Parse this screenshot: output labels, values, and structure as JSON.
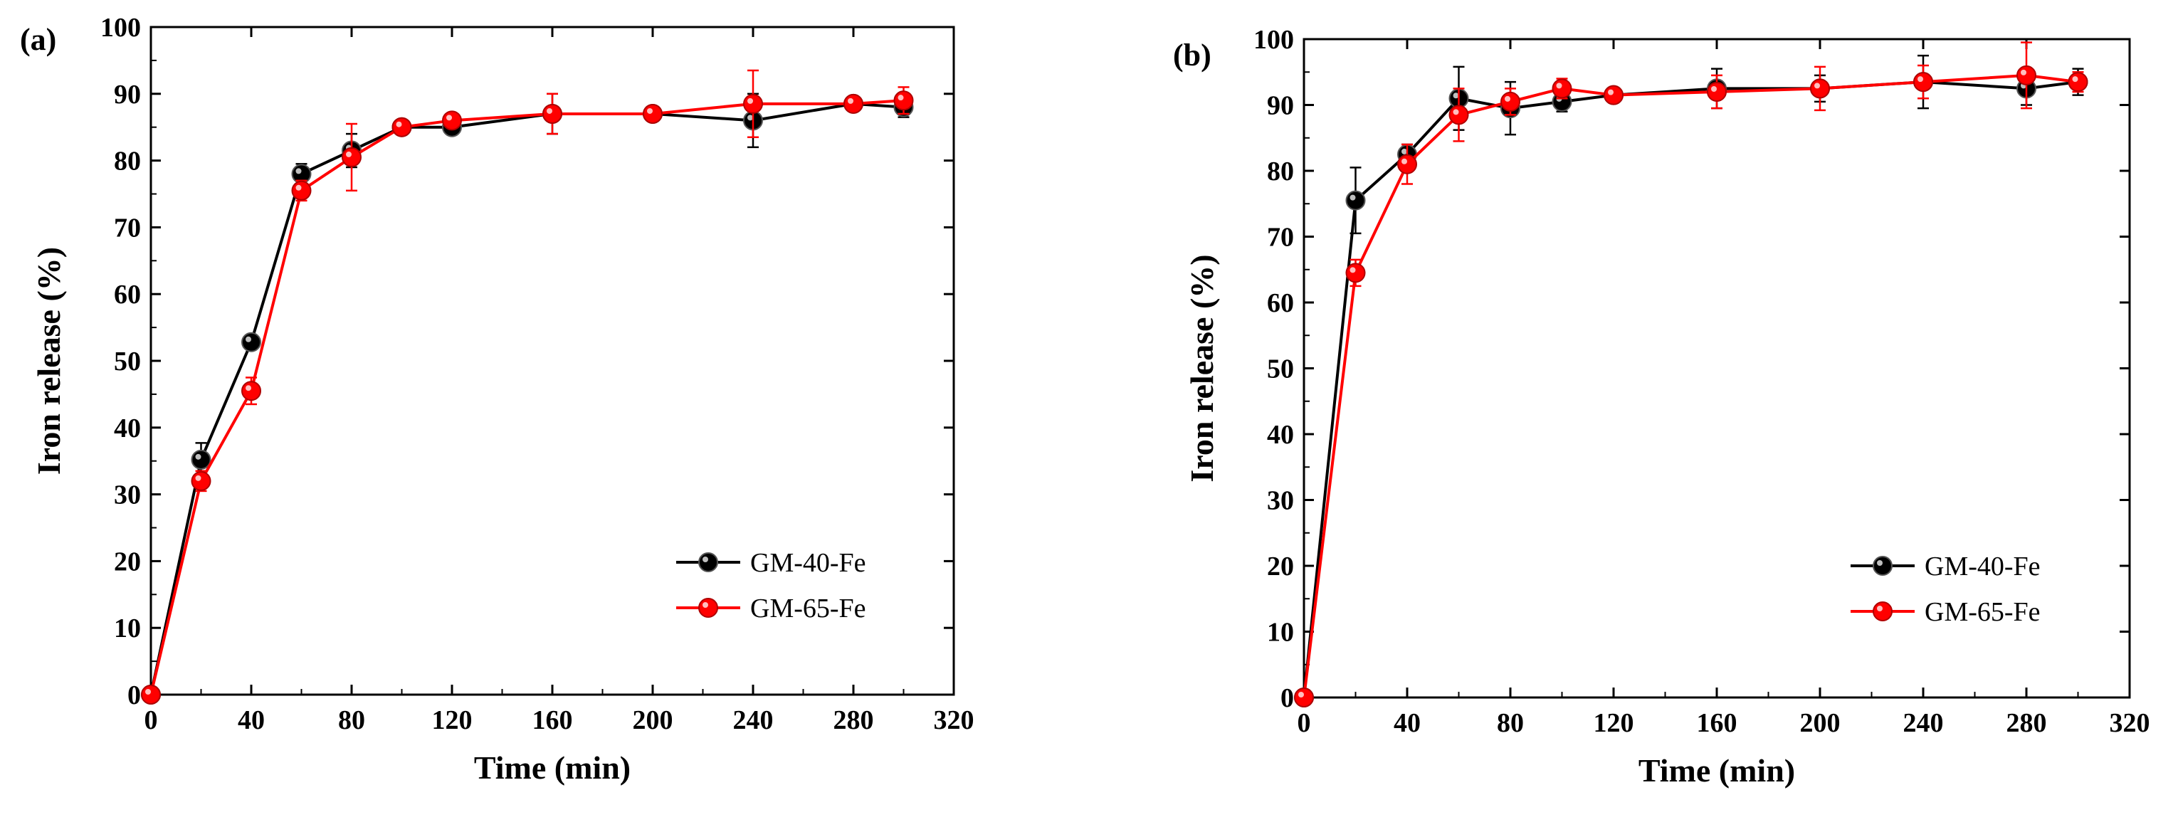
{
  "colors": {
    "series_black": "#000000",
    "series_red": "#ff0000"
  },
  "chart_data": [
    {
      "type": "line",
      "panel_label": "(a)",
      "xlabel": "Time (min)",
      "ylabel": "Iron release (%)",
      "xlim": [
        0,
        320
      ],
      "ylim": [
        0,
        100
      ],
      "xticks": [
        "0",
        "40",
        "80",
        "120",
        "160",
        "200",
        "240",
        "280",
        "320"
      ],
      "yticks": [
        "0",
        "10",
        "20",
        "30",
        "40",
        "50",
        "60",
        "70",
        "80",
        "90",
        "100"
      ],
      "legend_position": "lower-right",
      "series": [
        {
          "name": "GM-40-Fe",
          "color": "#000000",
          "x": [
            0,
            20,
            40,
            60,
            80,
            100,
            120,
            160,
            200,
            240,
            280,
            300
          ],
          "y": [
            0,
            35.2,
            52.8,
            78,
            81.5,
            85,
            85,
            87,
            87,
            86,
            88.5,
            88
          ],
          "err": [
            0,
            2.5,
            0,
            1.5,
            2.5,
            1,
            0.8,
            3,
            0.8,
            4,
            0.8,
            1.5
          ]
        },
        {
          "name": "GM-65-Fe",
          "color": "#ff0000",
          "x": [
            0,
            20,
            40,
            60,
            80,
            100,
            120,
            160,
            200,
            240,
            280,
            300
          ],
          "y": [
            0,
            32,
            45.5,
            75.5,
            80.5,
            85,
            86,
            87,
            87,
            88.5,
            88.5,
            89
          ],
          "err": [
            0,
            1.5,
            2,
            1.5,
            5,
            0.8,
            0.8,
            3,
            0.8,
            5,
            0.8,
            2
          ]
        }
      ]
    },
    {
      "type": "line",
      "panel_label": "(b)",
      "xlabel": "Time (min)",
      "ylabel": "Iron release (%)",
      "xlim": [
        0,
        320
      ],
      "ylim": [
        0,
        100
      ],
      "xticks": [
        "0",
        "40",
        "80",
        "120",
        "160",
        "200",
        "240",
        "280",
        "320"
      ],
      "yticks": [
        "0",
        "10",
        "20",
        "30",
        "40",
        "50",
        "60",
        "70",
        "80",
        "90",
        "100"
      ],
      "legend_position": "lower-right",
      "series": [
        {
          "name": "GM-40-Fe",
          "color": "#000000",
          "x": [
            0,
            20,
            40,
            60,
            80,
            100,
            120,
            160,
            200,
            240,
            280,
            300
          ],
          "y": [
            0,
            75.5,
            82.5,
            91,
            89.5,
            90.5,
            91.5,
            92.5,
            92.5,
            93.5,
            92.5,
            93.5
          ],
          "err": [
            0,
            5,
            1.5,
            4.8,
            4,
            1.5,
            0.8,
            3,
            2,
            4,
            2.5,
            2
          ]
        },
        {
          "name": "GM-65-Fe",
          "color": "#ff0000",
          "x": [
            0,
            20,
            40,
            60,
            80,
            100,
            120,
            160,
            200,
            240,
            280,
            300
          ],
          "y": [
            0,
            64.5,
            81,
            88.5,
            90.5,
            92.5,
            91.5,
            92,
            92.5,
            93.5,
            94.5,
            93.5
          ],
          "err": [
            0,
            2,
            3,
            4,
            2,
            1.5,
            0.8,
            2.5,
            3.3,
            2.5,
            5,
            1.5
          ]
        }
      ]
    }
  ]
}
